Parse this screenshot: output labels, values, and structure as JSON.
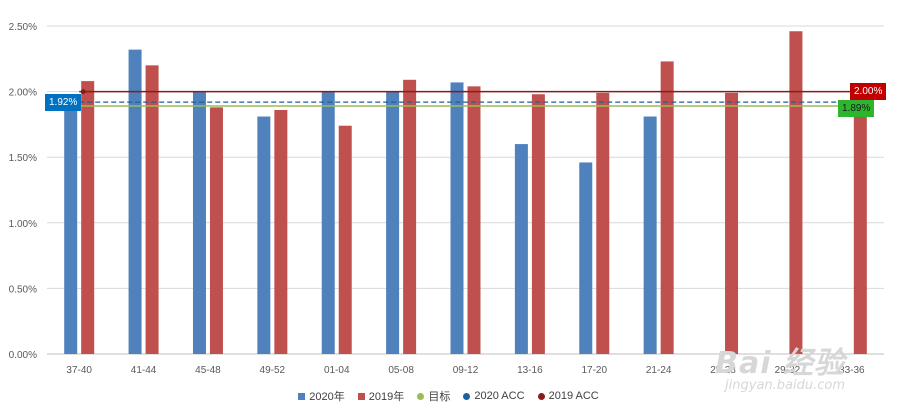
{
  "chart_data": {
    "type": "bar",
    "categories": [
      "37-40",
      "41-44",
      "45-48",
      "49-52",
      "01-04",
      "05-08",
      "09-12",
      "13-16",
      "17-20",
      "21-24",
      "25-28",
      "29-32",
      "33-36"
    ],
    "series": [
      {
        "name": "2020年",
        "type": "bar",
        "color": "#4f81bd",
        "values": [
          1.92,
          2.32,
          2.0,
          1.81,
          2.0,
          2.0,
          2.07,
          1.6,
          1.46,
          1.81,
          null,
          null,
          null
        ]
      },
      {
        "name": "2019年",
        "type": "bar",
        "color": "#c0504d",
        "values": [
          2.08,
          2.2,
          1.88,
          1.86,
          1.74,
          2.09,
          2.04,
          1.98,
          1.99,
          2.23,
          1.99,
          2.46,
          1.88
        ]
      },
      {
        "name": "目标",
        "type": "line",
        "color": "#9bbb59",
        "value": 1.89
      },
      {
        "name": "2020 ACC",
        "type": "line",
        "color": "#1f5f9f",
        "value": 1.92
      },
      {
        "name": "2019 ACC",
        "type": "line",
        "color": "#8b1a1a",
        "value": 2.0
      }
    ],
    "y_ticks": [
      "0.00%",
      "0.50%",
      "1.00%",
      "1.50%",
      "2.00%",
      "2.50%"
    ],
    "ylim": [
      0,
      2.5
    ],
    "grid": true,
    "legend_position": "bottom",
    "annotations": {
      "acc2020": {
        "text": "1.92%",
        "color": "#0070c0"
      },
      "target": {
        "text": "1.89%",
        "color": "#2db52d"
      },
      "acc2019": {
        "text": "2.00%",
        "color": "#c00000"
      }
    }
  },
  "watermark": {
    "main": "Bai 经验",
    "sub": "jingyan.baidu.com"
  }
}
